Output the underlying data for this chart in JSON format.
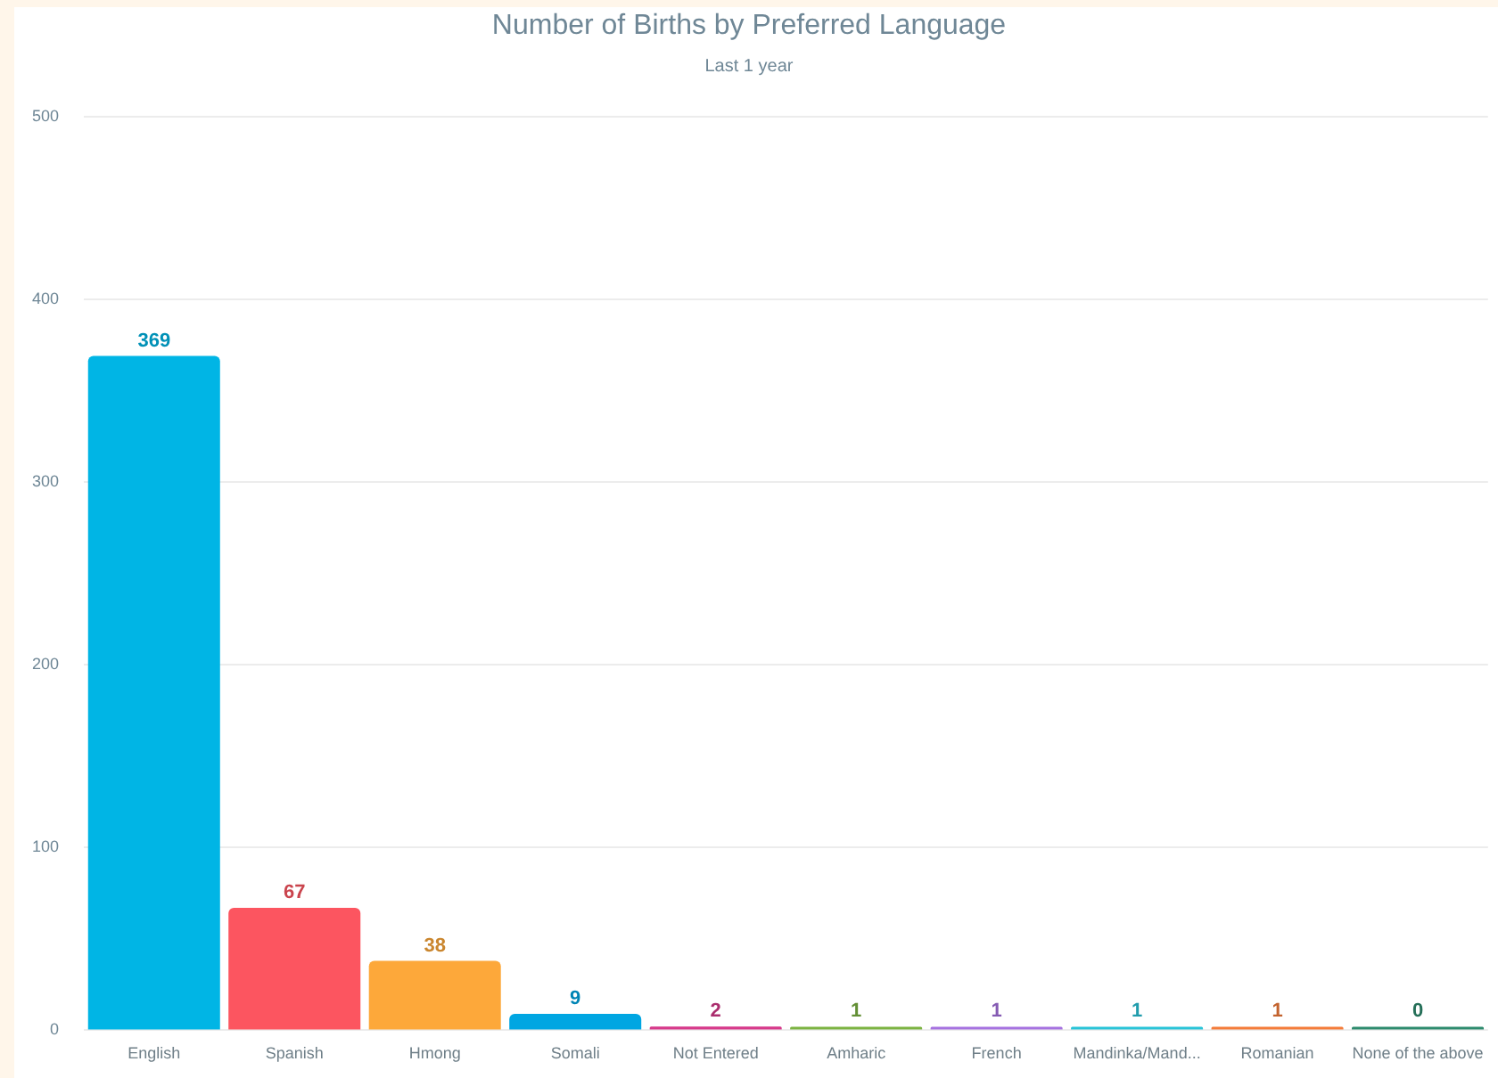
{
  "chart_data": {
    "type": "bar",
    "title": "Number of Births by Preferred Language",
    "subtitle": "Last 1 year",
    "categories": [
      "English",
      "Spanish",
      "Hmong",
      "Somali",
      "Not Entered",
      "Amharic",
      "French",
      "Mandinka/Mand...",
      "Romanian",
      "None of the above"
    ],
    "values": [
      369,
      67,
      38,
      9,
      2,
      1,
      1,
      1,
      1,
      0
    ],
    "colors": [
      "#00b5e5",
      "#fc5560",
      "#fda83a",
      "#00a6e2",
      "#d6398a",
      "#7cb342",
      "#a672e0",
      "#29c4d8",
      "#f47c3a",
      "#2e8b6e"
    ],
    "ylim": [
      0,
      500
    ],
    "yticks": [
      0,
      100,
      200,
      300,
      400,
      500
    ],
    "grid": "y",
    "data_labels": true,
    "legend": false
  }
}
